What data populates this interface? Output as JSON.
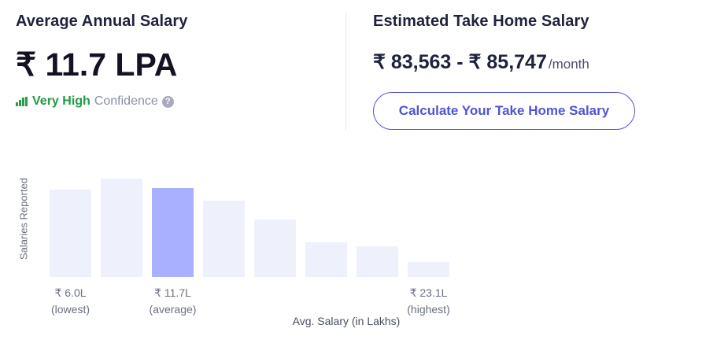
{
  "average": {
    "title": "Average Annual Salary",
    "value": "₹ 11.7 LPA",
    "confidence_level": "Very High",
    "confidence_label": "Confidence",
    "help_glyph": "?"
  },
  "take_home": {
    "title": "Estimated Take Home Salary",
    "range": "₹ 83,563 - ₹ 85,747",
    "unit": "/month",
    "button_label": "Calculate Your Take Home Salary"
  },
  "colors": {
    "bar": "#eef0fc",
    "bar_average": "#a9b1ff",
    "confidence": "#1f9a45",
    "accent": "#4e55d3"
  },
  "chart_data": {
    "type": "bar",
    "ylabel": "Salaries Reported",
    "xlabel": "Avg. Salary (in Lakhs)",
    "values": [
      111,
      125,
      113,
      97,
      73,
      44,
      39,
      19
    ],
    "highlight_index": 2,
    "ticks": [
      {
        "bar": 0,
        "value": "₹ 6.0L",
        "note": "(lowest)"
      },
      {
        "bar": 2,
        "value": "₹ 11.7L",
        "note": "(average)"
      },
      {
        "bar": 7,
        "value": "₹ 23.1L",
        "note": "(highest)"
      }
    ]
  }
}
